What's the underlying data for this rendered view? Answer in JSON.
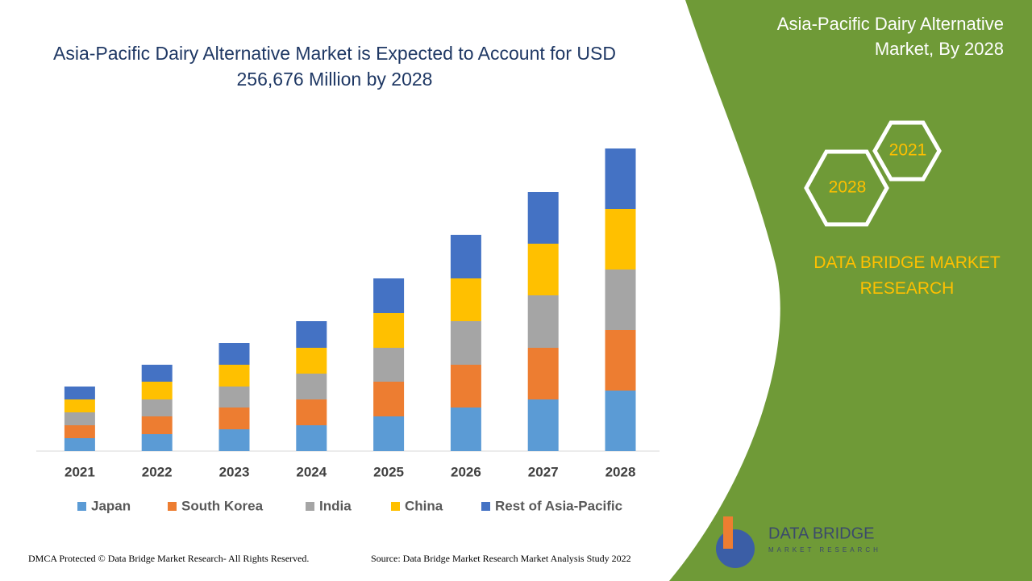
{
  "chart_data": {
    "type": "stacked_bar",
    "title": "Asia-Pacific Dairy Alternative Market is Expected to Account for USD 256,676 Million by 2028",
    "categories": [
      "2021",
      "2022",
      "2023",
      "2024",
      "2025",
      "2026",
      "2027",
      "2028"
    ],
    "series": [
      {
        "name": "Japan",
        "color": "#5b9bd5",
        "values": [
          16,
          21,
          27,
          32,
          43,
          54,
          64,
          75
        ]
      },
      {
        "name": "South Korea",
        "color": "#ed7d31",
        "values": [
          16,
          22,
          27,
          32,
          43,
          53,
          64,
          75
        ]
      },
      {
        "name": "India",
        "color": "#a5a5a5",
        "values": [
          16,
          21,
          26,
          32,
          42,
          54,
          65,
          75
        ]
      },
      {
        "name": "China",
        "color": "#ffc000",
        "values": [
          16,
          22,
          27,
          32,
          43,
          53,
          64,
          75
        ]
      },
      {
        "name": "Rest of Asia-Pacific",
        "color": "#4472c4",
        "values": [
          16,
          21,
          27,
          33,
          43,
          54,
          64,
          75
        ]
      }
    ],
    "ylim": [
      0,
      400
    ]
  },
  "side_panel": {
    "title": "Asia-Pacific Dairy Alternative Market, By 2028",
    "hex_top": "2021",
    "hex_bottom": "2028",
    "brand": "DATA BRIDGE MARKET RESEARCH"
  },
  "logo": {
    "name": "DATA BRIDGE",
    "tagline": "MARKET RESEARCH"
  },
  "footer": {
    "copyright": "DMCA Protected © Data Bridge Market Research- All Rights Reserved.",
    "source": "Source: Data Bridge Market Research Market Analysis Study 2022"
  }
}
